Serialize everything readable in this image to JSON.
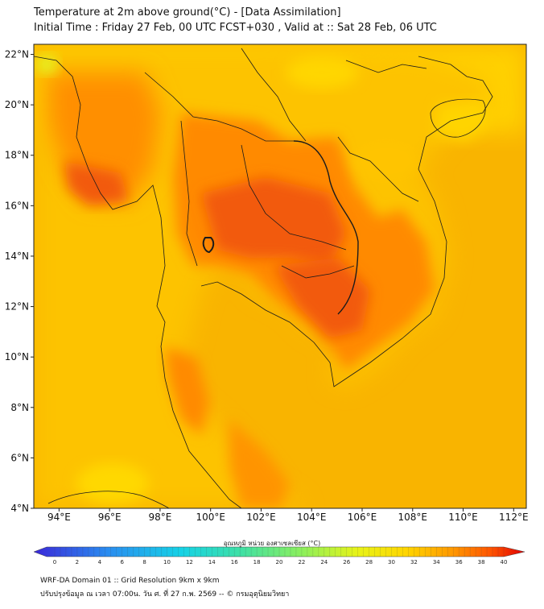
{
  "title": {
    "line1": "Temperature at 2m above ground(°C) - [Data Assimilation]",
    "line2": "Initial Time : Friday 27 Feb, 00 UTC FCST+030 , Valid at :: Sat 28 Feb, 06 UTC"
  },
  "axes": {
    "lon_labels": [
      "94°E",
      "96°E",
      "98°E",
      "100°E",
      "102°E",
      "104°E",
      "106°E",
      "108°E",
      "110°E",
      "112°E"
    ],
    "lat_labels": [
      "4°N",
      "6°N",
      "8°N",
      "10°N",
      "12°N",
      "14°N",
      "16°N",
      "18°N",
      "20°N",
      "22°N"
    ],
    "lon_values": [
      94,
      96,
      98,
      100,
      102,
      104,
      106,
      108,
      110,
      112
    ],
    "lat_values": [
      4,
      6,
      8,
      10,
      12,
      14,
      16,
      18,
      20,
      22
    ]
  },
  "colorbar": {
    "label": "อุณหภูมิ หน่วย องศาเซลเซียส (°C)",
    "ticks": [
      "0",
      "2",
      "4",
      "6",
      "8",
      "10",
      "12",
      "14",
      "16",
      "18",
      "20",
      "22",
      "24",
      "26",
      "28",
      "30",
      "32",
      "34",
      "36",
      "38",
      "40"
    ],
    "min": 0,
    "max": 40,
    "colors": [
      "#3a28d8",
      "#2a8cf0",
      "#16d2e6",
      "#3ee0a6",
      "#8ff05a",
      "#e8f318",
      "#ffd500",
      "#ff9a00",
      "#ff5500",
      "#e00000"
    ]
  },
  "footer": {
    "line1": "WRF-DA Domain 01 :: Grid Resolution 9km x 9km",
    "line2": "ปรับปรุงข้อมูล ณ เวลา 07:00น. วัน ศ. ที่ 27 ก.พ. 2569 -- © กรมอุตุนิยมวิทยา"
  },
  "map_colors": {
    "sea": "#f9b400",
    "coast_warm": "#ffd600",
    "land_hot": "#ff8800",
    "land_hottest": "#f25a0c",
    "highland_cool": "#f5ee20",
    "border": "#1b1b1b"
  }
}
